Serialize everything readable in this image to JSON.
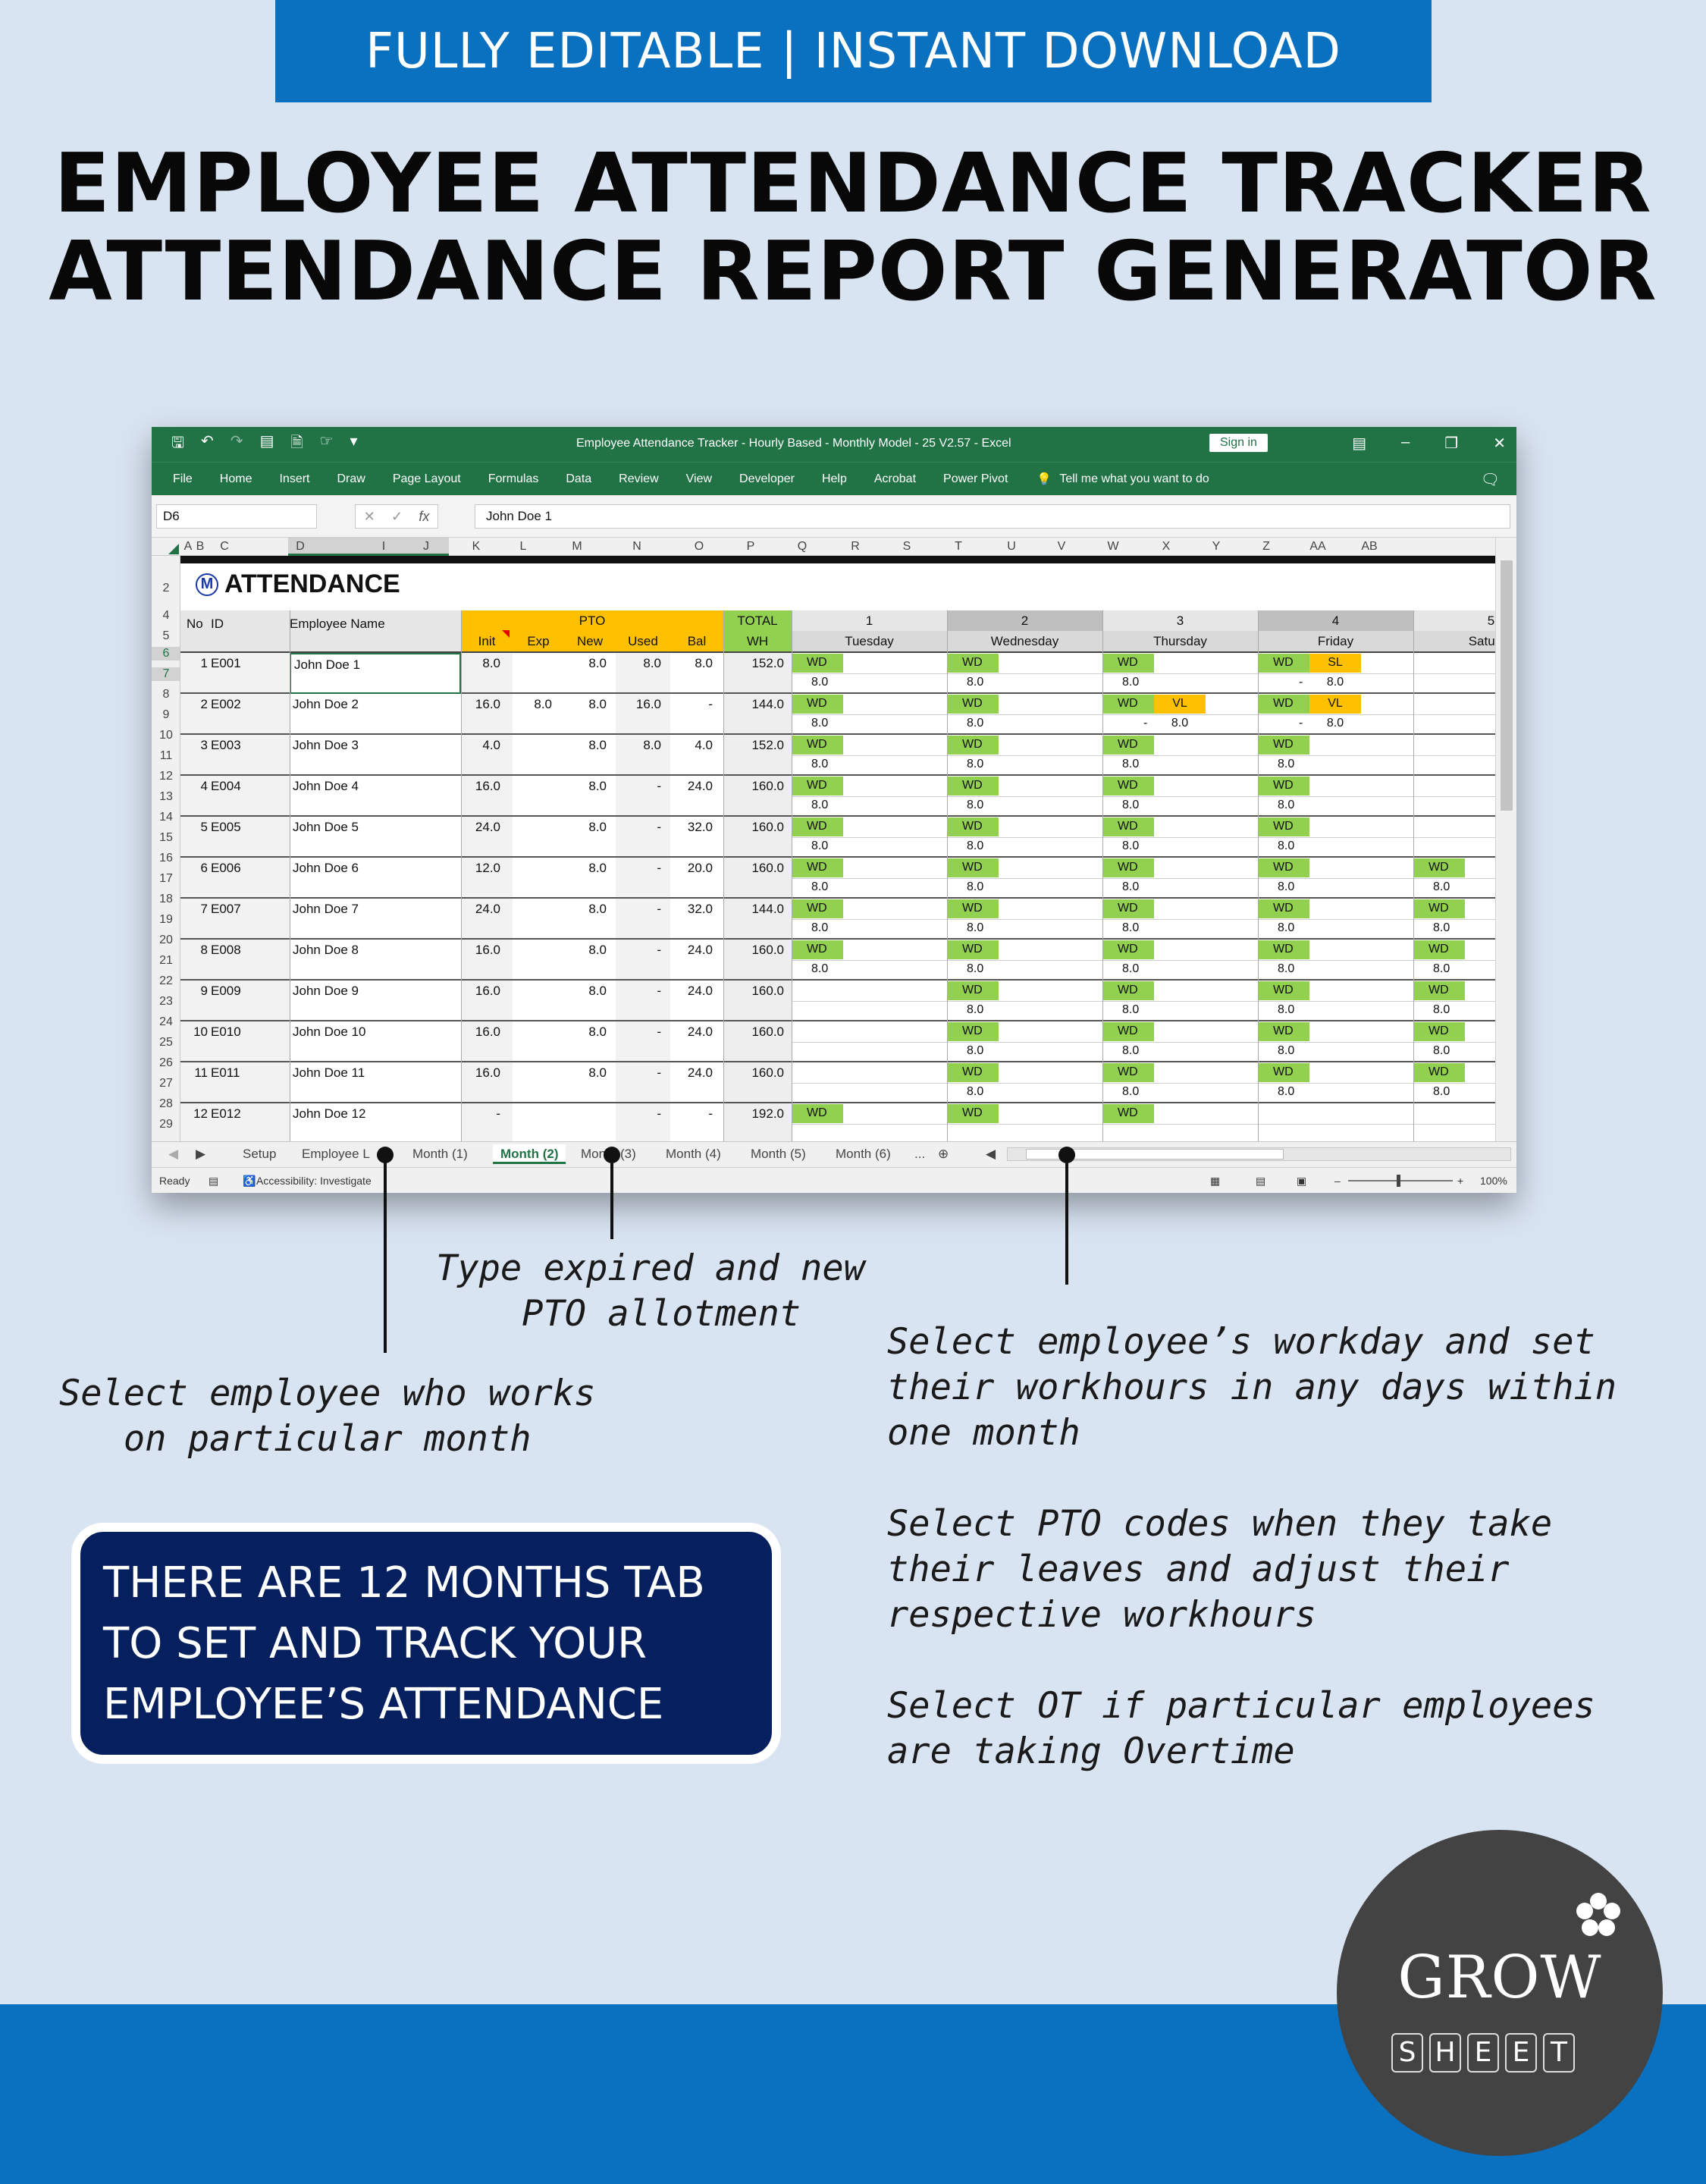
{
  "banner": "FULLY EDITABLE | INSTANT DOWNLOAD",
  "title_line1": "EMPLOYEE ATTENDANCE TRACKER",
  "title_line2": "ATTENDANCE REPORT GENERATOR",
  "excel": {
    "window_title": "Employee Attendance Tracker - Hourly Based - Monthly Model - 25 V2.57  -  Excel",
    "sign_in": "Sign in",
    "ribbon_tabs": [
      "File",
      "Home",
      "Insert",
      "Draw",
      "Page Layout",
      "Formulas",
      "Data",
      "Review",
      "View",
      "Developer",
      "Help",
      "Acrobat",
      "Power Pivot"
    ],
    "tell_me": "Tell me what you want to do",
    "name_box": "D6",
    "formula": "John Doe 1",
    "columns": [
      "A",
      "B",
      "C",
      "D",
      "I",
      "J",
      "K",
      "L",
      "M",
      "N",
      "O",
      "P",
      "Q",
      "R",
      "S",
      "T",
      "U",
      "V",
      "W",
      "X",
      "Y",
      "Z",
      "AA",
      "AB"
    ],
    "row_numbers": [
      "2",
      "4",
      "5",
      "6",
      "7",
      "8",
      "9",
      "10",
      "11",
      "12",
      "13",
      "14",
      "15",
      "16",
      "17",
      "18",
      "19",
      "20",
      "21",
      "22",
      "23",
      "24",
      "25",
      "26",
      "27",
      "28",
      "29"
    ],
    "sheet_title": "ATTENDANCE",
    "header": {
      "no": "No",
      "id": "ID",
      "name": "Employee Name",
      "pto": "PTO",
      "init": "Init",
      "exp": "Exp",
      "new": "New",
      "used": "Used",
      "bal": "Bal",
      "total": "TOTAL",
      "wh": "WH",
      "days": [
        {
          "num": "1",
          "name": "Tuesday"
        },
        {
          "num": "2",
          "name": "Wednesday"
        },
        {
          "num": "3",
          "name": "Thursday"
        },
        {
          "num": "4",
          "name": "Friday"
        },
        {
          "num": "5",
          "name": "Saturda"
        }
      ]
    },
    "employees": [
      {
        "no": "1",
        "id": "E001",
        "name": "John Doe 1",
        "init": "8.0",
        "exp": "",
        "new": "8.0",
        "used": "8.0",
        "bal": "8.0",
        "wh": "152.0",
        "days": [
          [
            "WD",
            "",
            "8.0",
            ""
          ],
          [
            "WD",
            "",
            "8.0",
            ""
          ],
          [
            "WD",
            "",
            "8.0",
            ""
          ],
          [
            "WD",
            "SL",
            "-",
            "8.0"
          ],
          [
            "",
            "",
            "",
            ""
          ]
        ]
      },
      {
        "no": "2",
        "id": "E002",
        "name": "John Doe 2",
        "init": "16.0",
        "exp": "8.0",
        "new": "8.0",
        "used": "16.0",
        "bal": "-",
        "wh": "144.0",
        "days": [
          [
            "WD",
            "",
            "8.0",
            ""
          ],
          [
            "WD",
            "",
            "8.0",
            ""
          ],
          [
            "WD",
            "VL",
            "-",
            "8.0"
          ],
          [
            "WD",
            "VL",
            "-",
            "8.0"
          ],
          [
            "",
            "",
            "",
            ""
          ]
        ]
      },
      {
        "no": "3",
        "id": "E003",
        "name": "John Doe 3",
        "init": "4.0",
        "exp": "",
        "new": "8.0",
        "used": "8.0",
        "bal": "4.0",
        "wh": "152.0",
        "days": [
          [
            "WD",
            "",
            "8.0",
            ""
          ],
          [
            "WD",
            "",
            "8.0",
            ""
          ],
          [
            "WD",
            "",
            "8.0",
            ""
          ],
          [
            "WD",
            "",
            "8.0",
            ""
          ],
          [
            "",
            "",
            "",
            ""
          ]
        ]
      },
      {
        "no": "4",
        "id": "E004",
        "name": "John Doe 4",
        "init": "16.0",
        "exp": "",
        "new": "8.0",
        "used": "-",
        "bal": "24.0",
        "wh": "160.0",
        "days": [
          [
            "WD",
            "",
            "8.0",
            ""
          ],
          [
            "WD",
            "",
            "8.0",
            ""
          ],
          [
            "WD",
            "",
            "8.0",
            ""
          ],
          [
            "WD",
            "",
            "8.0",
            ""
          ],
          [
            "",
            "",
            "",
            ""
          ]
        ]
      },
      {
        "no": "5",
        "id": "E005",
        "name": "John Doe 5",
        "init": "24.0",
        "exp": "",
        "new": "8.0",
        "used": "-",
        "bal": "32.0",
        "wh": "160.0",
        "days": [
          [
            "WD",
            "",
            "8.0",
            ""
          ],
          [
            "WD",
            "",
            "8.0",
            ""
          ],
          [
            "WD",
            "",
            "8.0",
            ""
          ],
          [
            "WD",
            "",
            "8.0",
            ""
          ],
          [
            "",
            "",
            "",
            ""
          ]
        ]
      },
      {
        "no": "6",
        "id": "E006",
        "name": "John Doe 6",
        "init": "12.0",
        "exp": "",
        "new": "8.0",
        "used": "-",
        "bal": "20.0",
        "wh": "160.0",
        "days": [
          [
            "WD",
            "",
            "8.0",
            ""
          ],
          [
            "WD",
            "",
            "8.0",
            ""
          ],
          [
            "WD",
            "",
            "8.0",
            ""
          ],
          [
            "WD",
            "",
            "8.0",
            ""
          ],
          [
            "WD",
            "",
            "8.0",
            ""
          ]
        ]
      },
      {
        "no": "7",
        "id": "E007",
        "name": "John Doe 7",
        "init": "24.0",
        "exp": "",
        "new": "8.0",
        "used": "-",
        "bal": "32.0",
        "wh": "144.0",
        "days": [
          [
            "WD",
            "",
            "8.0",
            ""
          ],
          [
            "WD",
            "",
            "8.0",
            ""
          ],
          [
            "WD",
            "",
            "8.0",
            ""
          ],
          [
            "WD",
            "",
            "8.0",
            ""
          ],
          [
            "WD",
            "",
            "8.0",
            ""
          ]
        ]
      },
      {
        "no": "8",
        "id": "E008",
        "name": "John Doe 8",
        "init": "16.0",
        "exp": "",
        "new": "8.0",
        "used": "-",
        "bal": "24.0",
        "wh": "160.0",
        "days": [
          [
            "WD",
            "",
            "8.0",
            ""
          ],
          [
            "WD",
            "",
            "8.0",
            ""
          ],
          [
            "WD",
            "",
            "8.0",
            ""
          ],
          [
            "WD",
            "",
            "8.0",
            ""
          ],
          [
            "WD",
            "",
            "8.0",
            ""
          ]
        ]
      },
      {
        "no": "9",
        "id": "E009",
        "name": "John Doe 9",
        "init": "16.0",
        "exp": "",
        "new": "8.0",
        "used": "-",
        "bal": "24.0",
        "wh": "160.0",
        "days": [
          [
            "",
            "",
            "",
            ""
          ],
          [
            "WD",
            "",
            "8.0",
            ""
          ],
          [
            "WD",
            "",
            "8.0",
            ""
          ],
          [
            "WD",
            "",
            "8.0",
            ""
          ],
          [
            "WD",
            "",
            "8.0",
            ""
          ]
        ]
      },
      {
        "no": "10",
        "id": "E010",
        "name": "John Doe 10",
        "init": "16.0",
        "exp": "",
        "new": "8.0",
        "used": "-",
        "bal": "24.0",
        "wh": "160.0",
        "days": [
          [
            "",
            "",
            "",
            ""
          ],
          [
            "WD",
            "",
            "8.0",
            ""
          ],
          [
            "WD",
            "",
            "8.0",
            ""
          ],
          [
            "WD",
            "",
            "8.0",
            ""
          ],
          [
            "WD",
            "",
            "8.0",
            ""
          ]
        ]
      },
      {
        "no": "11",
        "id": "E011",
        "name": "John Doe 11",
        "init": "16.0",
        "exp": "",
        "new": "8.0",
        "used": "-",
        "bal": "24.0",
        "wh": "160.0",
        "days": [
          [
            "",
            "",
            "",
            ""
          ],
          [
            "WD",
            "",
            "8.0",
            ""
          ],
          [
            "WD",
            "",
            "8.0",
            ""
          ],
          [
            "WD",
            "",
            "8.0",
            ""
          ],
          [
            "WD",
            "",
            "8.0",
            ""
          ]
        ]
      },
      {
        "no": "12",
        "id": "E012",
        "name": "John Doe 12",
        "init": "-",
        "exp": "",
        "new": "",
        "used": "-",
        "bal": "-",
        "wh": "192.0",
        "days": [
          [
            "WD",
            "",
            "",
            ""
          ],
          [
            "WD",
            "",
            "",
            ""
          ],
          [
            "WD",
            "",
            "",
            ""
          ],
          [
            "",
            "",
            "",
            ""
          ],
          [
            "",
            "",
            "",
            ""
          ]
        ]
      }
    ],
    "sheet_tabs": [
      "Setup",
      "Employee L",
      "Month (1)",
      "Month (2)",
      "Month (3)",
      "Month (4)",
      "Month (5)",
      "Month (6)",
      "..."
    ],
    "active_tab": "Month (2)",
    "status_ready": "Ready",
    "status_accessibility": "Accessibility: Investigate",
    "zoom": "100%"
  },
  "annotations": {
    "note_employee": "Select employee who works\n   on particular month",
    "note_pto": "Type expired and new\n    PTO allotment",
    "note_workday": "Select employee’s workday and set\ntheir workhours in any days within\none month",
    "note_pto_codes": "Select PTO codes when they take\ntheir leaves and adjust their\nrespective workhours",
    "note_ot": "Select OT if particular employees\nare taking Overtime"
  },
  "info_box": [
    "THERE ARE 12 MONTHS TAB",
    "TO SET AND TRACK YOUR",
    "EMPLOYEE’S ATTENDANCE"
  ],
  "logo": {
    "word": "GROW",
    "letters": [
      "S",
      "H",
      "E",
      "E",
      "T"
    ]
  },
  "colors": {
    "excel_green": "#217346",
    "pto_orange": "#ffc000",
    "wd_green": "#92d050",
    "leave_orange": "#ffc000",
    "banner_blue": "#0a70c0",
    "box_navy": "#06205f"
  }
}
